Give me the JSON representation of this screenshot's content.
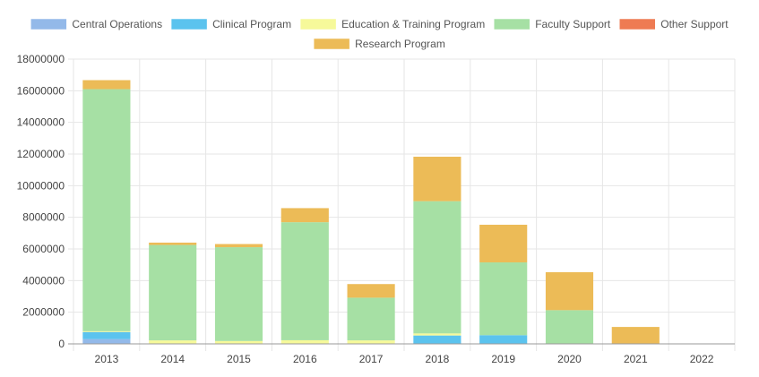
{
  "chart_data": {
    "type": "bar",
    "stacked": true,
    "categories": [
      "2013",
      "2014",
      "2015",
      "2016",
      "2017",
      "2018",
      "2019",
      "2020",
      "2021",
      "2022"
    ],
    "series": [
      {
        "name": "Central Operations",
        "color": "#93b9e9",
        "values": [
          300000,
          0,
          0,
          0,
          0,
          0,
          0,
          0,
          0,
          0
        ]
      },
      {
        "name": "Clinical Program",
        "color": "#5bc3ee",
        "values": [
          450000,
          0,
          0,
          0,
          0,
          530000,
          550000,
          0,
          0,
          0
        ]
      },
      {
        "name": "Education & Training Program",
        "color": "#f6f99a",
        "values": [
          50000,
          220000,
          180000,
          230000,
          220000,
          130000,
          0,
          0,
          0,
          0
        ]
      },
      {
        "name": "Faculty Support",
        "color": "#a6e0a4",
        "values": [
          15300000,
          6030000,
          5930000,
          7460000,
          2700000,
          8360000,
          4600000,
          2130000,
          0,
          0
        ]
      },
      {
        "name": "Other Support",
        "color": "#ee7b53",
        "values": [
          0,
          0,
          0,
          0,
          0,
          0,
          0,
          0,
          0,
          0
        ]
      },
      {
        "name": "Research Program",
        "color": "#ecbb57",
        "values": [
          570000,
          150000,
          200000,
          890000,
          860000,
          2810000,
          2380000,
          2400000,
          1070000,
          0
        ]
      }
    ],
    "ylim": [
      0,
      18000000
    ],
    "yticks": [
      0,
      2000000,
      4000000,
      6000000,
      8000000,
      10000000,
      12000000,
      14000000,
      16000000,
      18000000
    ],
    "title": "",
    "xlabel": "",
    "ylabel": "",
    "grid": true,
    "legend_position": "top-center"
  }
}
